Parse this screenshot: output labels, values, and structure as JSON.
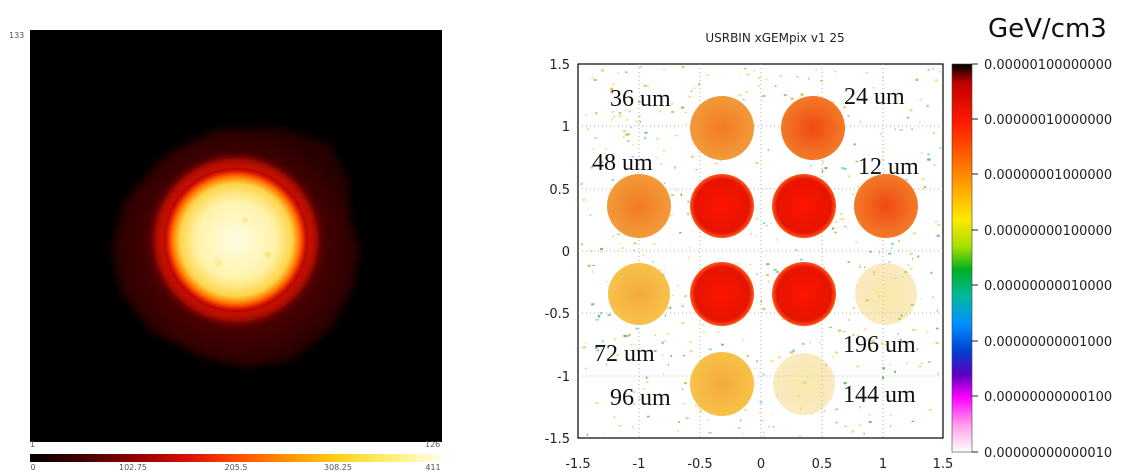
{
  "left_panel": {
    "y_tick": "133",
    "x_min": "1",
    "x_max": "126",
    "colorbar_ticks": [
      "0",
      "102.75",
      "205.5",
      "308.25",
      "411"
    ]
  },
  "right_panel": {
    "title": "USRBIN xGEMpix v1 25",
    "units": "GeV/cm3",
    "x_ticks": [
      "-1.5",
      "-1",
      "-0.5",
      "0",
      "0.5",
      "1",
      "1.5"
    ],
    "y_ticks": [
      "1.5",
      "1",
      "0.5",
      "0",
      "-0.5",
      "-1",
      "-1.5"
    ],
    "colorbar_ticks": [
      "0.00000100000000",
      "0.00000010000000",
      "0.00000001000000",
      "0.00000000100000",
      "0.00000000010000",
      "0.00000000001000",
      "0.00000000000100",
      "0.00000000000010"
    ],
    "annotations": [
      "36 um",
      "24 um",
      "48 um",
      "12 um",
      "72 um",
      "196 um",
      "96 um",
      "144 um"
    ],
    "colors": {
      "red": "#e21a00",
      "orange": "#ef9a33",
      "orange_yellow": "#f0b63a",
      "frame": "#000000"
    }
  }
}
